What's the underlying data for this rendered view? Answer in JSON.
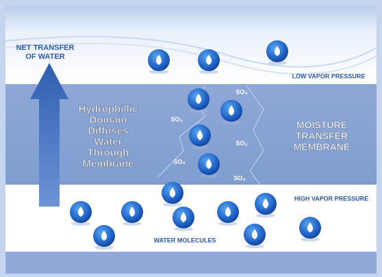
{
  "net_transfer": {
    "lines": [
      "NET TRANSFER",
      "OF WATER"
    ]
  },
  "low_vapor_pressure": "LOW VAPOR PRESSURE",
  "high_vapor_pressure": "HIGH VAPOR PRESSURE",
  "hydrophilic_text": {
    "lines": [
      "Hydrophillic",
      "Domain",
      "Diffuses",
      "Water",
      "Through",
      "Membrane"
    ]
  },
  "membrane_label": {
    "lines": [
      "MOISTURE",
      "TRANSFER",
      "MEMBRANE"
    ]
  },
  "sulfonate_labels": [
    "SO₃",
    "SO₃",
    "SO₃",
    "SO₃",
    "SO₃"
  ],
  "water_molecules": "WATER MOLECULES"
}
